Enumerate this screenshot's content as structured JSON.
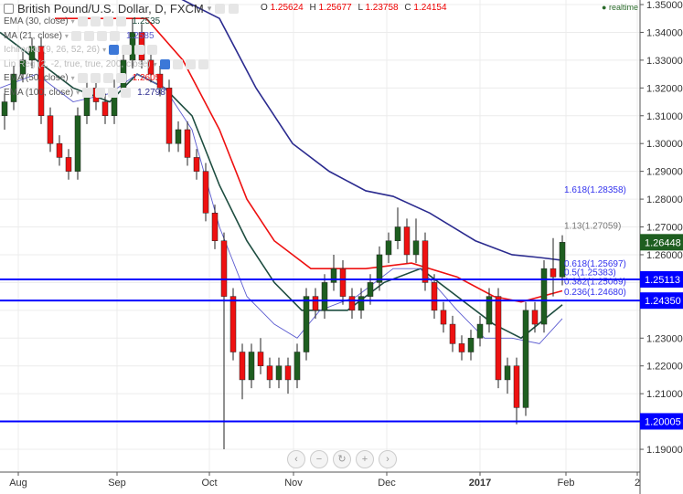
{
  "header": {
    "title": "British Pound/U.S. Dollar, D, FXCM",
    "ohlc": {
      "o_label": "O",
      "o": "1.25624",
      "h_label": "H",
      "h": "1.25677",
      "l_label": "L",
      "l": "1.23758",
      "c_label": "C",
      "c": "1.24154"
    },
    "realtime": "realtime"
  },
  "legend": [
    {
      "label": "EMA (30, close)",
      "value": "1.2535",
      "color": "#1e4d40"
    },
    {
      "label": "MA (21, close)",
      "value": "1.2585",
      "color": "#5b5bd0"
    },
    {
      "label": "Ichimoku (9, 26, 52, 26)",
      "value": "",
      "color": "#bbbbbb"
    },
    {
      "label": "Lin Reg (2, -2, true, true, 200, close)",
      "value": "",
      "color": "#bbbbbb"
    },
    {
      "label": "EMA (50, close)",
      "value": "1.2605",
      "color": "#ee1111"
    },
    {
      "label": "EMA (100, close)",
      "value": "1.2798",
      "color": "#2b2b8f"
    }
  ],
  "nav_buttons": [
    "zoom-out",
    "minus",
    "reset",
    "plus",
    "zoom-in"
  ],
  "chart_data": {
    "type": "candlestick",
    "ylim": [
      1.186,
      1.352
    ],
    "yticks": [
      "1.35000",
      "1.34000",
      "1.33000",
      "1.32000",
      "1.31000",
      "1.30000",
      "1.29000",
      "1.28000",
      "1.27000",
      "1.26000",
      "1.23000",
      "1.22000",
      "1.21000",
      "1.19000"
    ],
    "xticks": [
      {
        "label": "Aug",
        "i": 1.5
      },
      {
        "label": "Sep",
        "i": 12.3
      },
      {
        "label": "Oct",
        "i": 22.4
      },
      {
        "label": "Nov",
        "i": 31.6
      },
      {
        "label": "Dec",
        "i": 41.8
      },
      {
        "label": "2017",
        "i": 52
      },
      {
        "label": "Feb",
        "i": 61.4
      },
      {
        "label": "2",
        "i": 69.2
      }
    ],
    "candles": [
      [
        1.31,
        1.318,
        1.305,
        1.315
      ],
      [
        1.315,
        1.328,
        1.312,
        1.325
      ],
      [
        1.325,
        1.333,
        1.322,
        1.33
      ],
      [
        1.33,
        1.338,
        1.327,
        1.335
      ],
      [
        1.335,
        1.338,
        1.307,
        1.31
      ],
      [
        1.31,
        1.313,
        1.297,
        1.3
      ],
      [
        1.3,
        1.303,
        1.292,
        1.295
      ],
      [
        1.295,
        1.298,
        1.287,
        1.29
      ],
      [
        1.29,
        1.313,
        1.287,
        1.31
      ],
      [
        1.31,
        1.323,
        1.307,
        1.32
      ],
      [
        1.32,
        1.323,
        1.312,
        1.315
      ],
      [
        1.315,
        1.318,
        1.307,
        1.31
      ],
      [
        1.31,
        1.323,
        1.307,
        1.32
      ],
      [
        1.32,
        1.333,
        1.317,
        1.33
      ],
      [
        1.33,
        1.345,
        1.327,
        1.34
      ],
      [
        1.34,
        1.343,
        1.327,
        1.33
      ],
      [
        1.33,
        1.333,
        1.322,
        1.325
      ],
      [
        1.325,
        1.328,
        1.317,
        1.32
      ],
      [
        1.32,
        1.323,
        1.297,
        1.3
      ],
      [
        1.3,
        1.308,
        1.297,
        1.305
      ],
      [
        1.305,
        1.308,
        1.292,
        1.295
      ],
      [
        1.295,
        1.298,
        1.287,
        1.29
      ],
      [
        1.29,
        1.293,
        1.272,
        1.275
      ],
      [
        1.275,
        1.278,
        1.262,
        1.265
      ],
      [
        1.265,
        1.268,
        1.19,
        1.245
      ],
      [
        1.245,
        1.248,
        1.222,
        1.225
      ],
      [
        1.225,
        1.228,
        1.208,
        1.215
      ],
      [
        1.215,
        1.228,
        1.212,
        1.225
      ],
      [
        1.225,
        1.23,
        1.217,
        1.22
      ],
      [
        1.22,
        1.223,
        1.212,
        1.215
      ],
      [
        1.215,
        1.223,
        1.212,
        1.22
      ],
      [
        1.22,
        1.223,
        1.21,
        1.215
      ],
      [
        1.215,
        1.228,
        1.212,
        1.225
      ],
      [
        1.225,
        1.248,
        1.222,
        1.245
      ],
      [
        1.245,
        1.248,
        1.237,
        1.24
      ],
      [
        1.24,
        1.253,
        1.237,
        1.25
      ],
      [
        1.25,
        1.26,
        1.247,
        1.255
      ],
      [
        1.255,
        1.258,
        1.242,
        1.245
      ],
      [
        1.245,
        1.248,
        1.237,
        1.24
      ],
      [
        1.24,
        1.248,
        1.237,
        1.245
      ],
      [
        1.245,
        1.253,
        1.242,
        1.25
      ],
      [
        1.25,
        1.263,
        1.247,
        1.26
      ],
      [
        1.26,
        1.268,
        1.257,
        1.265
      ],
      [
        1.265,
        1.277,
        1.262,
        1.27
      ],
      [
        1.27,
        1.273,
        1.257,
        1.26
      ],
      [
        1.26,
        1.273,
        1.257,
        1.265
      ],
      [
        1.265,
        1.268,
        1.247,
        1.25
      ],
      [
        1.25,
        1.253,
        1.237,
        1.24
      ],
      [
        1.24,
        1.243,
        1.232,
        1.235
      ],
      [
        1.235,
        1.238,
        1.225,
        1.228
      ],
      [
        1.228,
        1.231,
        1.222,
        1.225
      ],
      [
        1.225,
        1.233,
        1.222,
        1.23
      ],
      [
        1.23,
        1.238,
        1.227,
        1.235
      ],
      [
        1.235,
        1.248,
        1.232,
        1.245
      ],
      [
        1.245,
        1.248,
        1.212,
        1.215
      ],
      [
        1.215,
        1.223,
        1.21,
        1.22
      ],
      [
        1.22,
        1.223,
        1.199,
        1.205
      ],
      [
        1.205,
        1.243,
        1.202,
        1.24
      ],
      [
        1.24,
        1.243,
        1.232,
        1.235
      ],
      [
        1.235,
        1.258,
        1.232,
        1.255
      ],
      [
        1.255,
        1.266,
        1.245,
        1.252
      ],
      [
        1.252,
        1.267,
        1.249,
        1.26448
      ]
    ],
    "up_color": "#1e5e20",
    "down_color": "#ee1111",
    "series": [
      {
        "name": "EMA (100, close)",
        "color": "#2b2b8f",
        "width": 1.6,
        "points": [
          [
            17.5,
            1.355
          ],
          [
            23.5,
            1.345
          ],
          [
            27.5,
            1.32
          ],
          [
            31.5,
            1.3
          ],
          [
            35.5,
            1.29
          ],
          [
            39.5,
            1.283
          ],
          [
            42.5,
            1.281
          ],
          [
            46.5,
            1.275
          ],
          [
            51.5,
            1.265
          ],
          [
            55.5,
            1.26
          ],
          [
            58.5,
            1.259
          ],
          [
            61,
            1.258
          ]
        ]
      },
      {
        "name": "EMA (50, close)",
        "color": "#ee1111",
        "width": 1.6,
        "points": [
          [
            5.5,
            1.345
          ],
          [
            12.5,
            1.345
          ],
          [
            15.5,
            1.345
          ],
          [
            19.5,
            1.33
          ],
          [
            23.5,
            1.305
          ],
          [
            26.5,
            1.28
          ],
          [
            29.5,
            1.265
          ],
          [
            33.5,
            1.255
          ],
          [
            39.5,
            1.255
          ],
          [
            44.5,
            1.257
          ],
          [
            49.5,
            1.252
          ],
          [
            53.5,
            1.245
          ],
          [
            56.5,
            1.243
          ],
          [
            61,
            1.247
          ]
        ]
      },
      {
        "name": "EMA (30, close)",
        "color": "#1e4d40",
        "width": 1.6,
        "points": [
          [
            -0.5,
            1.34
          ],
          [
            3.5,
            1.33
          ],
          [
            7.5,
            1.32
          ],
          [
            11.5,
            1.315
          ],
          [
            14.5,
            1.325
          ],
          [
            17.5,
            1.32
          ],
          [
            20.5,
            1.31
          ],
          [
            23.5,
            1.285
          ],
          [
            26.5,
            1.265
          ],
          [
            29.5,
            1.25
          ],
          [
            32.5,
            1.24
          ],
          [
            37.5,
            1.24
          ],
          [
            41.5,
            1.25
          ],
          [
            45.5,
            1.255
          ],
          [
            49.5,
            1.245
          ],
          [
            53.5,
            1.235
          ],
          [
            56.5,
            1.23
          ],
          [
            59.5,
            1.238
          ],
          [
            61,
            1.242
          ]
        ]
      },
      {
        "name": "MA (21, close)",
        "color": "#5b5bd0",
        "width": 0.9,
        "points": [
          [
            -0.5,
            1.32
          ],
          [
            3.5,
            1.325
          ],
          [
            7.5,
            1.315
          ],
          [
            11.5,
            1.318
          ],
          [
            14.5,
            1.325
          ],
          [
            17.5,
            1.32
          ],
          [
            20.5,
            1.305
          ],
          [
            23.5,
            1.27
          ],
          [
            26.5,
            1.245
          ],
          [
            29.5,
            1.235
          ],
          [
            32,
            1.23
          ],
          [
            34.5,
            1.24
          ],
          [
            38.5,
            1.245
          ],
          [
            42.5,
            1.255
          ],
          [
            45.5,
            1.255
          ],
          [
            49.5,
            1.24
          ],
          [
            52.5,
            1.23
          ],
          [
            55.5,
            1.23
          ],
          [
            58.5,
            1.228
          ],
          [
            61,
            1.237
          ]
        ]
      }
    ],
    "hlines": [
      {
        "value": 1.25113,
        "label": "1.25113"
      },
      {
        "value": 1.2435,
        "label": "1.24350"
      },
      {
        "value": 1.20005,
        "label": "1.20005"
      }
    ],
    "hline_color": "#0000ff",
    "last_price": {
      "value": 1.26448,
      "label": "1.26448",
      "color": "#1e5e20"
    },
    "fib_labels": [
      {
        "value": 1.28358,
        "label": "1.618(1.28358)",
        "color": "#3333ee"
      },
      {
        "value": 1.27059,
        "label": "1.13(1.27059)",
        "color": "#777777"
      },
      {
        "value": 1.25697,
        "label": "0.618(1.25697)",
        "color": "#3333ee"
      },
      {
        "value": 1.25383,
        "label": "0.5(1.25383)",
        "color": "#3333ee"
      },
      {
        "value": 1.25069,
        "label": "0.382(1.25069)",
        "color": "#3333ee"
      },
      {
        "value": 1.2468,
        "label": "0.236(1.24680)",
        "color": "#3333ee"
      }
    ]
  }
}
